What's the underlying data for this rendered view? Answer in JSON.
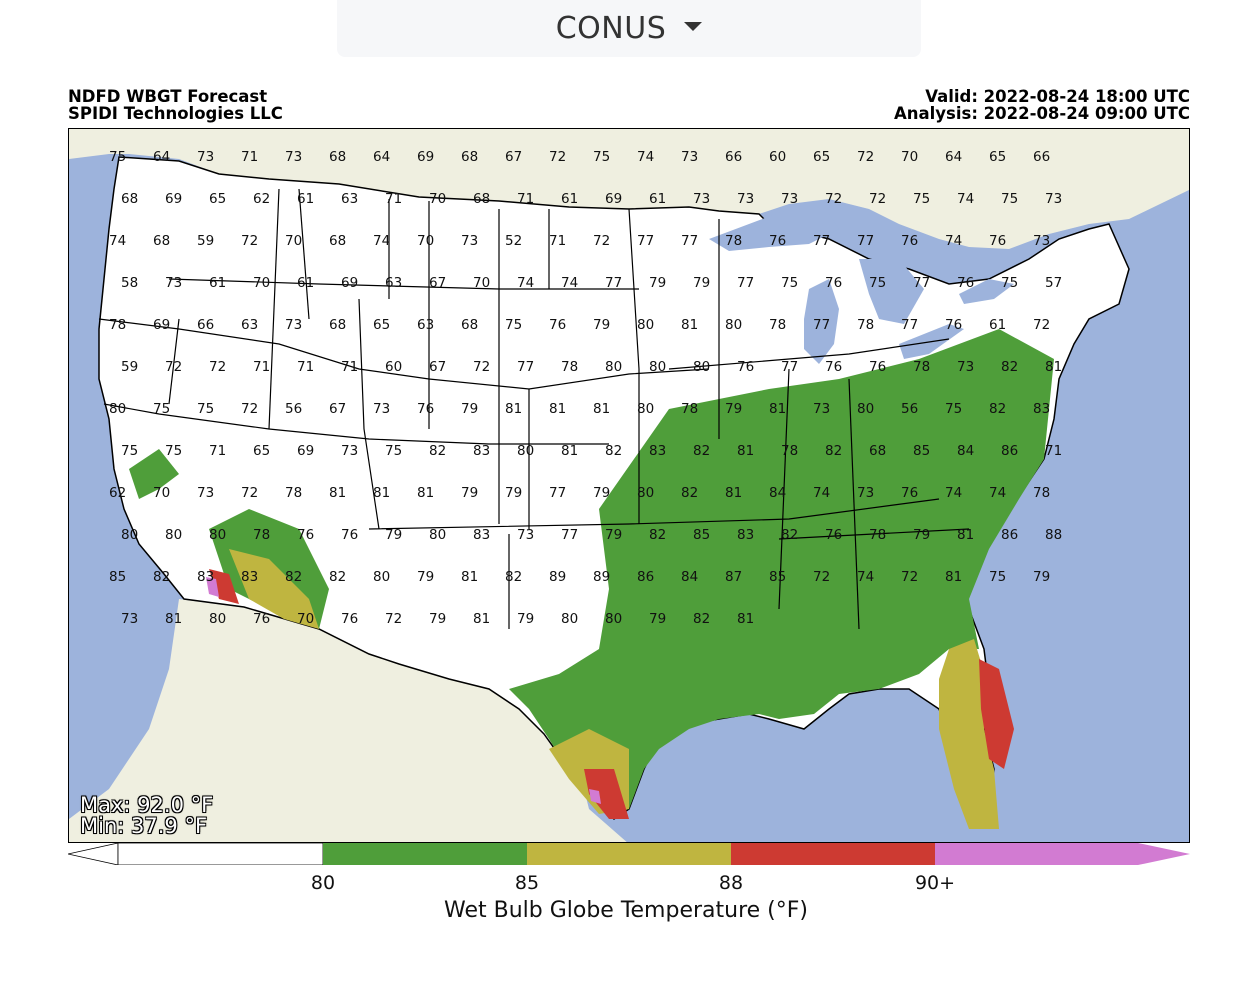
{
  "region": {
    "selected": "CONUS"
  },
  "header": {
    "title_line1": "NDFD WBGT Forecast",
    "title_line2": "SPIDI Technologies LLC",
    "valid": "Valid: 2022-08-24 18:00 UTC",
    "analysis": "Analysis: 2022-08-24 09:00 UTC"
  },
  "stats": {
    "max": "Max: 92.0 °F",
    "min": "Min: 37.9 °F"
  },
  "colorbar": {
    "title": "Wet Bulb Globe Temperature (°F)",
    "ticks": [
      "80",
      "85",
      "88",
      "90+"
    ],
    "colors": {
      "below80": "#ffffff",
      "80-85": "#4f9e3a",
      "85-88": "#bfb540",
      "88-90": "#cd3a32",
      "90+": "#d27bd2"
    }
  },
  "map_colors": {
    "water": "#9db3dc",
    "land": "#efefe0",
    "us_land": "#ffffff"
  },
  "station_values": [
    "75",
    "64",
    "73",
    "71",
    "73",
    "68",
    "64",
    "69",
    "68",
    "67",
    "72",
    "75",
    "74",
    "73",
    "66",
    "60",
    "65",
    "72",
    "70",
    "64",
    "65",
    "66",
    "68",
    "69",
    "65",
    "62",
    "61",
    "63",
    "71",
    "70",
    "68",
    "71",
    "61",
    "69",
    "61",
    "73",
    "73",
    "73",
    "72",
    "72",
    "75",
    "74",
    "75",
    "73",
    "74",
    "68",
    "59",
    "72",
    "70",
    "68",
    "74",
    "70",
    "73",
    "52",
    "71",
    "72",
    "77",
    "77",
    "78",
    "76",
    "77",
    "77",
    "76",
    "74",
    "76",
    "73",
    "58",
    "73",
    "61",
    "70",
    "61",
    "69",
    "63",
    "67",
    "70",
    "74",
    "74",
    "77",
    "79",
    "79",
    "77",
    "75",
    "76",
    "75",
    "77",
    "76",
    "75",
    "57",
    "78",
    "69",
    "66",
    "63",
    "73",
    "68",
    "65",
    "63",
    "68",
    "75",
    "76",
    "79",
    "80",
    "81",
    "80",
    "78",
    "77",
    "78",
    "77",
    "76",
    "61",
    "72",
    "59",
    "72",
    "72",
    "71",
    "71",
    "71",
    "60",
    "67",
    "72",
    "77",
    "78",
    "80",
    "80",
    "80",
    "76",
    "77",
    "76",
    "76",
    "78",
    "73",
    "82",
    "81",
    "80",
    "75",
    "75",
    "72",
    "56",
    "67",
    "73",
    "76",
    "79",
    "81",
    "81",
    "81",
    "80",
    "78",
    "79",
    "81",
    "73",
    "80",
    "56",
    "75",
    "82",
    "83",
    "75",
    "75",
    "71",
    "65",
    "69",
    "73",
    "75",
    "82",
    "83",
    "80",
    "81",
    "82",
    "83",
    "82",
    "81",
    "78",
    "82",
    "68",
    "85",
    "84",
    "86",
    "71",
    "62",
    "70",
    "73",
    "72",
    "78",
    "81",
    "81",
    "81",
    "79",
    "79",
    "77",
    "79",
    "80",
    "82",
    "81",
    "84",
    "74",
    "73",
    "76",
    "74",
    "74",
    "78",
    "80",
    "80",
    "80",
    "78",
    "76",
    "76",
    "79",
    "80",
    "83",
    "73",
    "77",
    "79",
    "82",
    "85",
    "83",
    "82",
    "76",
    "78",
    "79",
    "81",
    "86",
    "88",
    "85",
    "82",
    "83",
    "83",
    "82",
    "82",
    "80",
    "79",
    "81",
    "82",
    "89",
    "89",
    "86",
    "84",
    "87",
    "85",
    "72",
    "74",
    "72",
    "81",
    "75",
    "79",
    "73",
    "81",
    "80",
    "76",
    "70",
    "76",
    "72",
    "79",
    "81",
    "79",
    "80",
    "80",
    "79",
    "82",
    "81"
  ]
}
